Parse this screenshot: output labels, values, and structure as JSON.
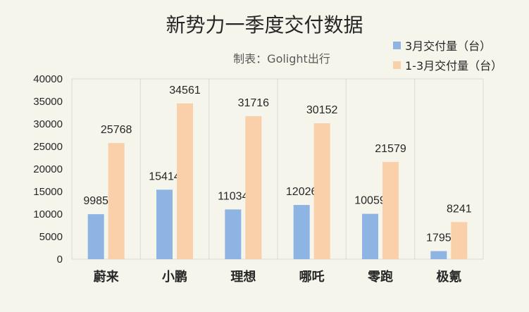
{
  "chart_data": {
    "type": "bar",
    "title": "新势力一季度交付数据",
    "subtitle": "制表：Golight出行",
    "categories": [
      "蔚来",
      "小鹏",
      "理想",
      "哪吒",
      "零跑",
      "极氪"
    ],
    "series": [
      {
        "name": "3月交付量（台）",
        "color": "#8eb4e3",
        "values": [
          9985,
          15414,
          11034,
          12026,
          10059,
          1795
        ]
      },
      {
        "name": "1-3月交付量（台）",
        "color": "#fad0ab",
        "values": [
          25768,
          34561,
          31716,
          30152,
          21579,
          8241
        ]
      }
    ],
    "ylim": [
      0,
      40000
    ],
    "yticks": [
      0,
      5000,
      10000,
      15000,
      20000,
      25000,
      30000,
      35000,
      40000
    ],
    "grid": "vertical",
    "legend_position": "top-right"
  }
}
